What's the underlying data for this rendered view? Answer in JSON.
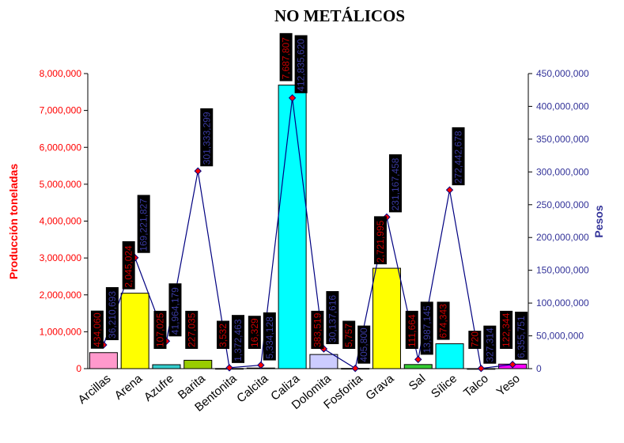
{
  "chart_data": {
    "type": "bar",
    "title": "NO METÁLICOS",
    "categories": [
      "Arcillas",
      "Arena",
      "Azufre",
      "Barita",
      "Bentonita",
      "Calcita",
      "Caliza",
      "Dolomita",
      "Fosforita",
      "Grava",
      "Sal",
      "Sílice",
      "Talco",
      "Yeso"
    ],
    "series": [
      {
        "name": "Producción toneladas",
        "axis": "left",
        "chart_type": "bar",
        "values": [
          434060,
          2045024,
          107025,
          227035,
          3532,
          16329,
          7687807,
          383519,
          5757,
          2721995,
          111664,
          674343,
          720,
          122344
        ],
        "labels": [
          "434,060",
          "2,045,024",
          "107,025",
          "227,035",
          "3,532",
          "16,329",
          "7,687,807",
          "383,519",
          "5,757",
          "2,721,995",
          "111,664",
          "674,343",
          "720",
          "122,344"
        ]
      },
      {
        "name": "Pesos",
        "axis": "right",
        "chart_type": "line",
        "values": [
          36210693,
          169221827,
          41964179,
          301333299,
          1372463,
          5334128,
          412835620,
          30137616,
          405800,
          231167458,
          13987145,
          272442678,
          327314,
          6355751
        ],
        "labels": [
          "36,210,693",
          "169,221,827",
          "41,964,179",
          "301,333,299",
          "1,372,463",
          "5,334,128",
          "412,835,620",
          "30,137,616",
          "405,800",
          "231,167,458",
          "13,987,145",
          "272,442,678",
          "327,314",
          "6,355,751"
        ]
      }
    ],
    "bar_colors": [
      "#ff99cc",
      "#ffff00",
      "#33cccc",
      "#99cc00",
      "#ffffff",
      "#ffffff",
      "#00ffff",
      "#ccccff",
      "#ffffff",
      "#ffff00",
      "#33cc33",
      "#00ffff",
      "#ffffff",
      "#ff00ff"
    ],
    "ylabel": "Producción toneladas",
    "y2label": "Pesos",
    "ylim": [
      0,
      8000000
    ],
    "y2lim": [
      0,
      450000000
    ],
    "yticks": [
      "0",
      "1,000,000",
      "2,000,000",
      "3,000,000",
      "4,000,000",
      "5,000,000",
      "6,000,000",
      "7,000,000",
      "8,000,000"
    ],
    "y2ticks": [
      "0",
      "50,000,000",
      "100,000,000",
      "150,000,000",
      "200,000,000",
      "250,000,000",
      "300,000,000",
      "350,000,000",
      "400,000,000",
      "450,000,000"
    ],
    "colors": {
      "left_axis": "#ff0000",
      "right_axis": "#333399",
      "label_box": "#000000",
      "line": "#000080"
    },
    "grid": false,
    "legend": "none"
  }
}
